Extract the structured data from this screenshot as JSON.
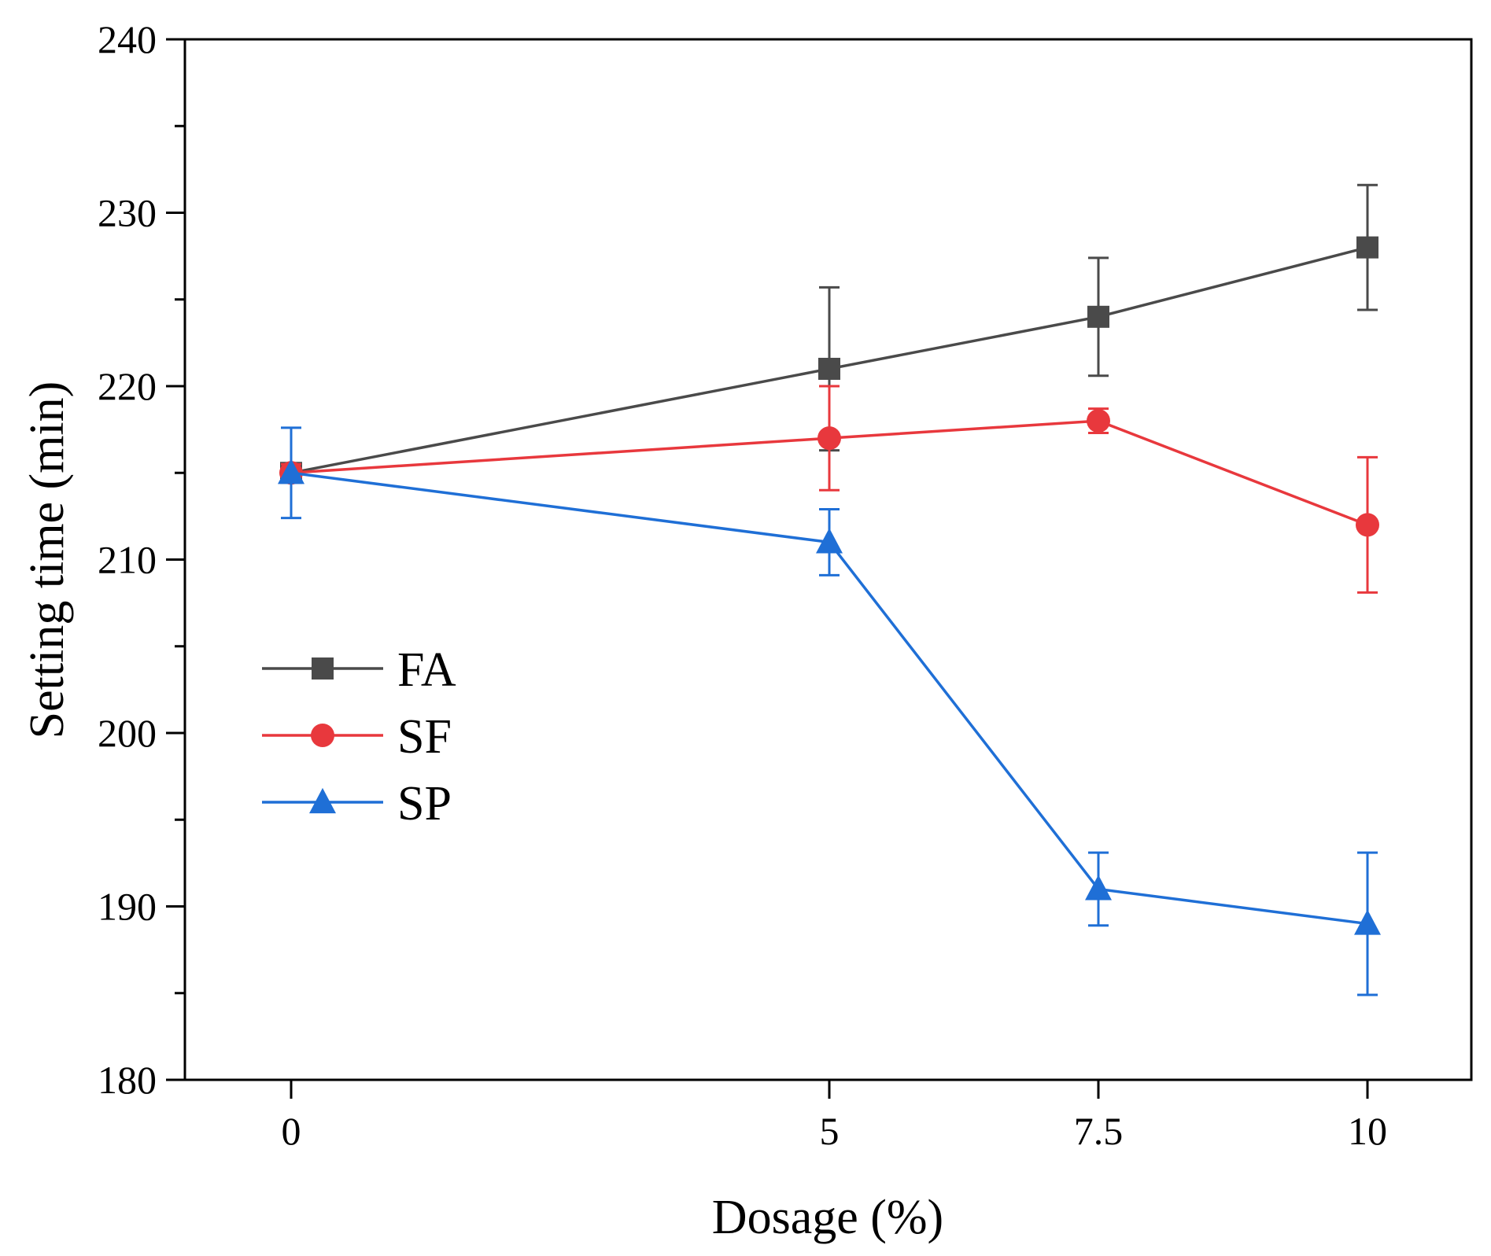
{
  "chart_data": {
    "type": "line",
    "title": "",
    "xlabel": "Dosage (%)",
    "ylabel": "Setting time (min)",
    "categories": [
      "0",
      "5",
      "7.5",
      "10"
    ],
    "x": [
      0,
      5,
      7.5,
      10
    ],
    "ylim": [
      180,
      240
    ],
    "yticks": [
      "180",
      "190",
      "200",
      "210",
      "220",
      "230",
      "240"
    ],
    "grid": false,
    "legend_position": "middle-left",
    "series": [
      {
        "name": "FA",
        "color": "#4a4a4a",
        "marker": "square",
        "values": [
          215,
          221,
          224,
          228
        ],
        "errors": [
          0.5,
          4.7,
          3.4,
          3.6
        ]
      },
      {
        "name": "SF",
        "color": "#e8383d",
        "marker": "circle",
        "values": [
          215,
          217,
          218,
          212
        ],
        "errors": [
          0.5,
          3.0,
          0.7,
          3.9
        ]
      },
      {
        "name": "SP",
        "color": "#1f6fd6",
        "marker": "triangle",
        "values": [
          215,
          211,
          191,
          189
        ],
        "errors": [
          2.6,
          1.9,
          2.1,
          4.1
        ]
      }
    ]
  }
}
